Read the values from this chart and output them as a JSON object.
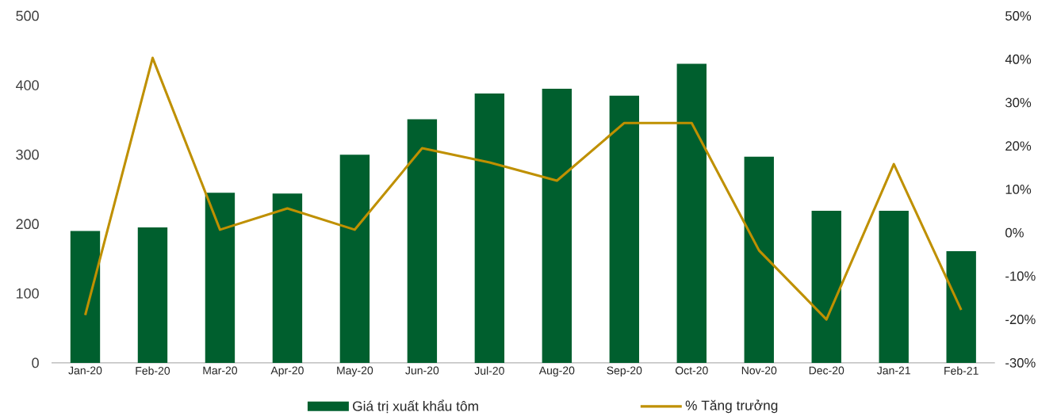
{
  "chart_data": {
    "type": "bar",
    "categories": [
      "Jan-20",
      "Feb-20",
      "Mar-20",
      "Apr-20",
      "May-20",
      "Jun-20",
      "Jul-20",
      "Aug-20",
      "Sep-20",
      "Oct-20",
      "Nov-20",
      "Dec-20",
      "Jan-21",
      "Feb-21"
    ],
    "series": [
      {
        "name": "Giá trị xuất khẩu tôm",
        "color": "#005f2e",
        "values": [
          190,
          195,
          245,
          244,
          300,
          351,
          388,
          395,
          385,
          431,
          297,
          219,
          219,
          161
        ]
      },
      {
        "name": "% Tăng trưởng",
        "type": "line",
        "axis": "y2",
        "color": "#bf9000",
        "values": [
          -19.0,
          40.3,
          0.7,
          5.6,
          0.7,
          19.5,
          16.2,
          12.0,
          25.3,
          25.3,
          -4.1,
          -20.0,
          15.8,
          -17.8
        ]
      }
    ],
    "ylim": [
      0,
      500
    ],
    "yticks": [
      0,
      100,
      200,
      300,
      400,
      500
    ],
    "y2lim": [
      -30,
      50
    ],
    "y2ticks": [
      {
        "value": -30,
        "label": "-30%"
      },
      {
        "value": -20,
        "label": "-20%"
      },
      {
        "value": -10,
        "label": "-10%"
      },
      {
        "value": 0,
        "label": "0%"
      },
      {
        "value": 10,
        "label": "10%"
      },
      {
        "value": 20,
        "label": "20%"
      },
      {
        "value": 30,
        "label": "30%"
      },
      {
        "value": 40,
        "label": "40%"
      },
      {
        "value": 50,
        "label": "50%"
      }
    ],
    "legend": "bottom",
    "grid": false,
    "marker": "none"
  }
}
